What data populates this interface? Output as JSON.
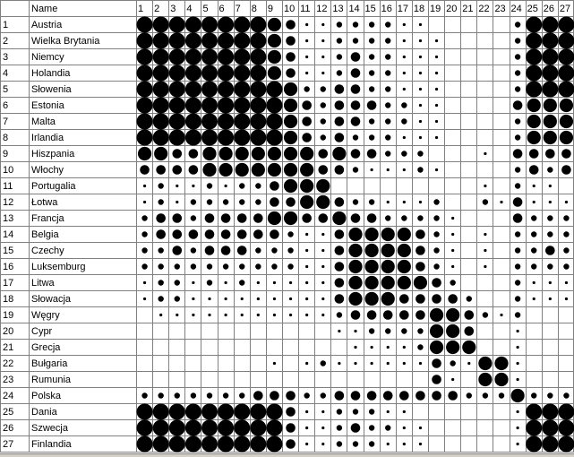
{
  "chart_data": {
    "type": "heatmap",
    "title": "",
    "header": {
      "corner": "",
      "name_column": "Name"
    },
    "column_labels": [
      "1",
      "2",
      "3",
      "4",
      "5",
      "6",
      "7",
      "8",
      "9",
      "10",
      "11",
      "12",
      "13",
      "14",
      "15",
      "16",
      "17",
      "18",
      "19",
      "20",
      "21",
      "22",
      "23",
      "24",
      "25",
      "26",
      "27"
    ],
    "rows": [
      {
        "index": "1",
        "name": "Austria",
        "values": [
          5,
          5,
          5,
          5,
          5,
          5,
          5,
          5,
          4,
          3,
          1,
          1,
          2,
          2,
          2,
          2,
          1,
          1,
          0,
          0,
          0,
          0,
          0,
          2,
          5,
          5,
          5
        ]
      },
      {
        "index": "2",
        "name": "Wielka Brytania",
        "values": [
          5,
          5,
          5,
          5,
          5,
          5,
          5,
          5,
          4,
          3,
          1,
          1,
          2,
          2,
          2,
          2,
          1,
          1,
          1,
          0,
          0,
          0,
          0,
          2,
          5,
          5,
          5
        ]
      },
      {
        "index": "3",
        "name": "Niemcy",
        "values": [
          5,
          5,
          5,
          5,
          5,
          5,
          5,
          5,
          4,
          3,
          1,
          1,
          2,
          3,
          2,
          2,
          1,
          1,
          1,
          0,
          0,
          0,
          0,
          2,
          5,
          5,
          5
        ]
      },
      {
        "index": "4",
        "name": "Holandia",
        "values": [
          5,
          5,
          5,
          5,
          5,
          5,
          5,
          5,
          4,
          3,
          1,
          1,
          2,
          3,
          2,
          2,
          1,
          1,
          1,
          0,
          0,
          0,
          0,
          2,
          5,
          5,
          5
        ]
      },
      {
        "index": "5",
        "name": "Słowenia",
        "values": [
          5,
          5,
          5,
          5,
          5,
          5,
          5,
          5,
          5,
          4,
          2,
          2,
          3,
          3,
          2,
          2,
          1,
          1,
          1,
          0,
          0,
          0,
          0,
          2,
          5,
          5,
          5
        ]
      },
      {
        "index": "6",
        "name": "Estonia",
        "values": [
          5,
          5,
          5,
          5,
          5,
          5,
          5,
          5,
          5,
          4,
          3,
          2,
          3,
          3,
          3,
          2,
          2,
          1,
          1,
          0,
          0,
          0,
          0,
          3,
          4,
          4,
          4
        ]
      },
      {
        "index": "7",
        "name": "Malta",
        "values": [
          5,
          5,
          5,
          5,
          5,
          5,
          5,
          5,
          5,
          4,
          3,
          2,
          3,
          3,
          2,
          2,
          2,
          1,
          1,
          0,
          0,
          0,
          0,
          2,
          4,
          4,
          4
        ]
      },
      {
        "index": "8",
        "name": "Irlandia",
        "values": [
          5,
          5,
          5,
          5,
          5,
          5,
          5,
          5,
          5,
          4,
          3,
          2,
          3,
          2,
          2,
          2,
          1,
          1,
          1,
          0,
          0,
          0,
          0,
          2,
          4,
          4,
          4
        ]
      },
      {
        "index": "9",
        "name": "Hiszpania",
        "values": [
          4,
          4,
          3,
          3,
          4,
          4,
          4,
          4,
          4,
          4,
          4,
          3,
          4,
          3,
          3,
          2,
          2,
          2,
          0,
          0,
          0,
          1,
          0,
          3,
          3,
          3,
          3
        ]
      },
      {
        "index": "10",
        "name": "Włochy",
        "values": [
          3,
          3,
          3,
          3,
          4,
          4,
          4,
          4,
          4,
          4,
          4,
          3,
          3,
          2,
          1,
          1,
          1,
          2,
          1,
          0,
          0,
          0,
          0,
          2,
          3,
          2,
          3
        ]
      },
      {
        "index": "11",
        "name": "Portugalia",
        "values": [
          1,
          2,
          1,
          1,
          2,
          1,
          2,
          2,
          3,
          4,
          4,
          4,
          0,
          0,
          0,
          0,
          0,
          0,
          0,
          0,
          0,
          1,
          0,
          2,
          1,
          1,
          0
        ]
      },
      {
        "index": "12",
        "name": "Łotwa",
        "values": [
          1,
          2,
          1,
          2,
          2,
          2,
          2,
          2,
          3,
          3,
          4,
          4,
          3,
          2,
          2,
          1,
          1,
          1,
          2,
          0,
          0,
          2,
          1,
          3,
          1,
          1,
          1
        ]
      },
      {
        "index": "13",
        "name": "Francja",
        "values": [
          2,
          3,
          3,
          2,
          3,
          3,
          3,
          3,
          4,
          4,
          3,
          3,
          4,
          3,
          3,
          2,
          2,
          2,
          2,
          1,
          0,
          0,
          0,
          3,
          2,
          2,
          2
        ]
      },
      {
        "index": "14",
        "name": "Belgia",
        "values": [
          2,
          3,
          3,
          3,
          3,
          3,
          3,
          3,
          3,
          2,
          1,
          1,
          3,
          4,
          4,
          4,
          4,
          3,
          2,
          1,
          0,
          1,
          0,
          2,
          2,
          2,
          2
        ]
      },
      {
        "index": "15",
        "name": "Czechy",
        "values": [
          2,
          2,
          3,
          2,
          3,
          3,
          3,
          2,
          2,
          2,
          1,
          1,
          3,
          4,
          4,
          4,
          4,
          3,
          2,
          1,
          0,
          1,
          0,
          2,
          2,
          3,
          2
        ]
      },
      {
        "index": "16",
        "name": "Luksemburg",
        "values": [
          2,
          2,
          2,
          2,
          2,
          2,
          2,
          2,
          2,
          2,
          1,
          1,
          3,
          4,
          4,
          4,
          4,
          3,
          2,
          1,
          0,
          1,
          0,
          2,
          2,
          2,
          2
        ]
      },
      {
        "index": "17",
        "name": "Litwa",
        "values": [
          1,
          2,
          2,
          1,
          2,
          1,
          2,
          1,
          1,
          1,
          1,
          1,
          3,
          4,
          4,
          4,
          4,
          4,
          3,
          2,
          0,
          0,
          0,
          2,
          1,
          1,
          1
        ]
      },
      {
        "index": "18",
        "name": "Słowacja",
        "values": [
          1,
          2,
          2,
          1,
          1,
          1,
          1,
          1,
          1,
          1,
          1,
          1,
          3,
          4,
          4,
          4,
          3,
          3,
          3,
          3,
          2,
          0,
          0,
          2,
          1,
          1,
          1
        ]
      },
      {
        "index": "19",
        "name": "Węgry",
        "values": [
          0,
          1,
          1,
          1,
          1,
          1,
          1,
          1,
          1,
          1,
          1,
          1,
          2,
          3,
          3,
          3,
          3,
          3,
          4,
          4,
          3,
          2,
          1,
          2,
          0,
          0,
          0
        ]
      },
      {
        "index": "20",
        "name": "Cypr",
        "values": [
          0,
          0,
          0,
          0,
          0,
          0,
          0,
          0,
          0,
          0,
          0,
          0,
          1,
          1,
          2,
          2,
          2,
          2,
          4,
          4,
          3,
          0,
          0,
          1,
          0,
          0,
          0
        ]
      },
      {
        "index": "21",
        "name": "Grecja",
        "values": [
          0,
          0,
          0,
          0,
          0,
          0,
          0,
          0,
          0,
          0,
          0,
          0,
          0,
          1,
          1,
          1,
          1,
          2,
          4,
          4,
          4,
          0,
          0,
          1,
          0,
          0,
          0
        ]
      },
      {
        "index": "22",
        "name": "Bułgaria",
        "values": [
          0,
          0,
          0,
          0,
          0,
          0,
          0,
          0,
          1,
          0,
          1,
          2,
          1,
          1,
          1,
          1,
          1,
          1,
          3,
          2,
          1,
          4,
          4,
          1,
          0,
          0,
          0
        ]
      },
      {
        "index": "23",
        "name": "Rumunia",
        "values": [
          0,
          0,
          0,
          0,
          0,
          0,
          0,
          0,
          0,
          0,
          0,
          0,
          0,
          0,
          0,
          0,
          0,
          0,
          3,
          1,
          0,
          4,
          4,
          1,
          0,
          0,
          0
        ]
      },
      {
        "index": "24",
        "name": "Polska",
        "values": [
          2,
          2,
          2,
          2,
          2,
          2,
          2,
          3,
          3,
          3,
          2,
          2,
          3,
          3,
          3,
          3,
          3,
          3,
          3,
          3,
          2,
          2,
          2,
          4,
          2,
          2,
          2
        ]
      },
      {
        "index": "25",
        "name": "Dania",
        "values": [
          5,
          5,
          5,
          5,
          5,
          5,
          5,
          5,
          5,
          3,
          1,
          1,
          2,
          2,
          2,
          1,
          1,
          0,
          0,
          0,
          0,
          0,
          0,
          1,
          5,
          5,
          5
        ]
      },
      {
        "index": "26",
        "name": "Szwecja",
        "values": [
          5,
          5,
          5,
          5,
          5,
          5,
          5,
          5,
          5,
          3,
          1,
          1,
          2,
          3,
          2,
          2,
          1,
          1,
          0,
          0,
          0,
          0,
          0,
          1,
          5,
          5,
          5
        ]
      },
      {
        "index": "27",
        "name": "Finlandia",
        "values": [
          5,
          5,
          5,
          5,
          5,
          5,
          5,
          5,
          5,
          3,
          1,
          1,
          2,
          2,
          2,
          1,
          1,
          1,
          0,
          0,
          0,
          0,
          0,
          1,
          5,
          5,
          5
        ]
      }
    ],
    "colors": {
      "dot": "#000000",
      "grid": "#808080",
      "background": "#ffffff",
      "header": "#ffffff"
    }
  }
}
